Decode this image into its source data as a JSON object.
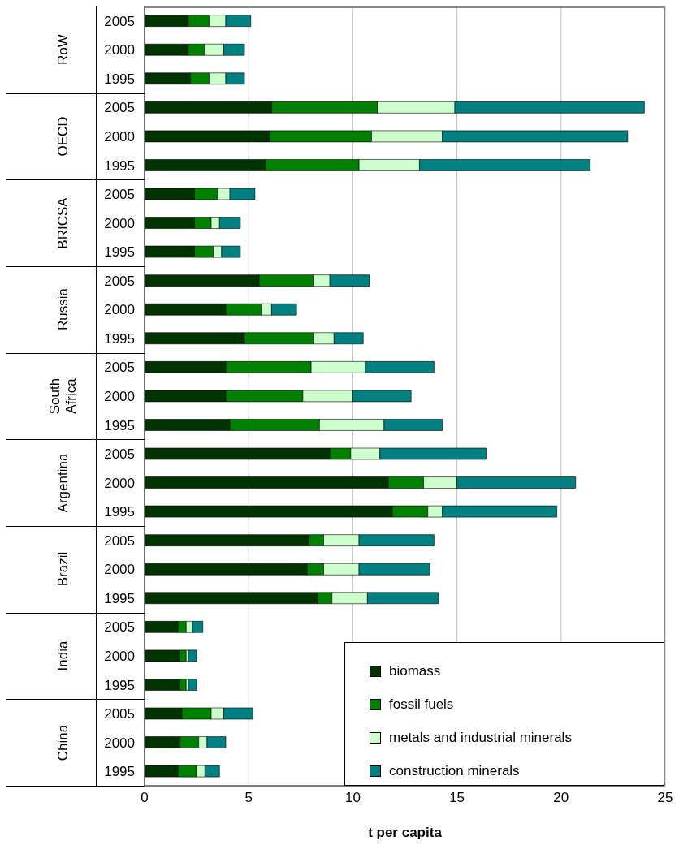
{
  "chart_data": {
    "type": "bar",
    "orientation": "horizontal",
    "stacked": true,
    "xlabel": "t per capita",
    "categories": [
      "2005",
      "2000",
      "1995",
      "2005",
      "2000",
      "1995",
      "2005",
      "2000",
      "1995",
      "2005",
      "2000",
      "1995",
      "2005",
      "2000",
      "1995",
      "2005",
      "2000",
      "1995",
      "2005",
      "2000",
      "1995",
      "2005",
      "2000",
      "1995",
      "2005",
      "2000",
      "1995"
    ],
    "annotations": [
      "RoW",
      "OECD",
      "BRICSA",
      "Russia",
      "South Africa",
      "Argentina",
      "Brazil",
      "India",
      "China"
    ],
    "series": [
      {
        "name": "biomass",
        "color": "#003300",
        "values": [
          2.1,
          2.1,
          2.2,
          6.1,
          6.0,
          5.8,
          2.4,
          2.4,
          2.4,
          5.5,
          3.9,
          4.8,
          3.9,
          3.9,
          4.1,
          8.9,
          11.7,
          11.9,
          7.9,
          7.8,
          8.3,
          1.6,
          1.7,
          1.7,
          1.8,
          1.7,
          1.6
        ]
      },
      {
        "name": "fossil fuels",
        "color": "#008000",
        "values": [
          1.0,
          0.8,
          0.9,
          5.1,
          4.9,
          4.5,
          1.1,
          0.8,
          0.9,
          2.6,
          1.7,
          3.3,
          4.1,
          3.7,
          4.3,
          1.0,
          1.7,
          1.7,
          0.7,
          0.8,
          0.7,
          0.4,
          0.3,
          0.3,
          1.4,
          0.9,
          0.9
        ]
      },
      {
        "name": "metals and industrial minerals",
        "color": "#ccffcc",
        "values": [
          0.8,
          0.9,
          0.8,
          3.7,
          3.4,
          2.9,
          0.6,
          0.4,
          0.4,
          0.8,
          0.5,
          1.0,
          2.6,
          2.4,
          3.1,
          1.4,
          1.6,
          0.7,
          1.7,
          1.7,
          1.7,
          0.3,
          0.1,
          0.1,
          0.6,
          0.4,
          0.4
        ]
      },
      {
        "name": "construction minerals",
        "color": "#008080",
        "values": [
          1.2,
          1.0,
          0.9,
          9.1,
          8.9,
          8.2,
          1.2,
          1.0,
          0.9,
          1.9,
          1.2,
          1.4,
          3.3,
          2.8,
          2.8,
          5.1,
          5.7,
          5.5,
          3.6,
          3.4,
          3.4,
          0.5,
          0.4,
          0.4,
          1.4,
          0.9,
          0.7
        ]
      }
    ],
    "xlim": [
      0,
      25
    ],
    "xticks": [
      0,
      5,
      10,
      15,
      20,
      25
    ],
    "grid": "x",
    "legend": "bottom right"
  }
}
